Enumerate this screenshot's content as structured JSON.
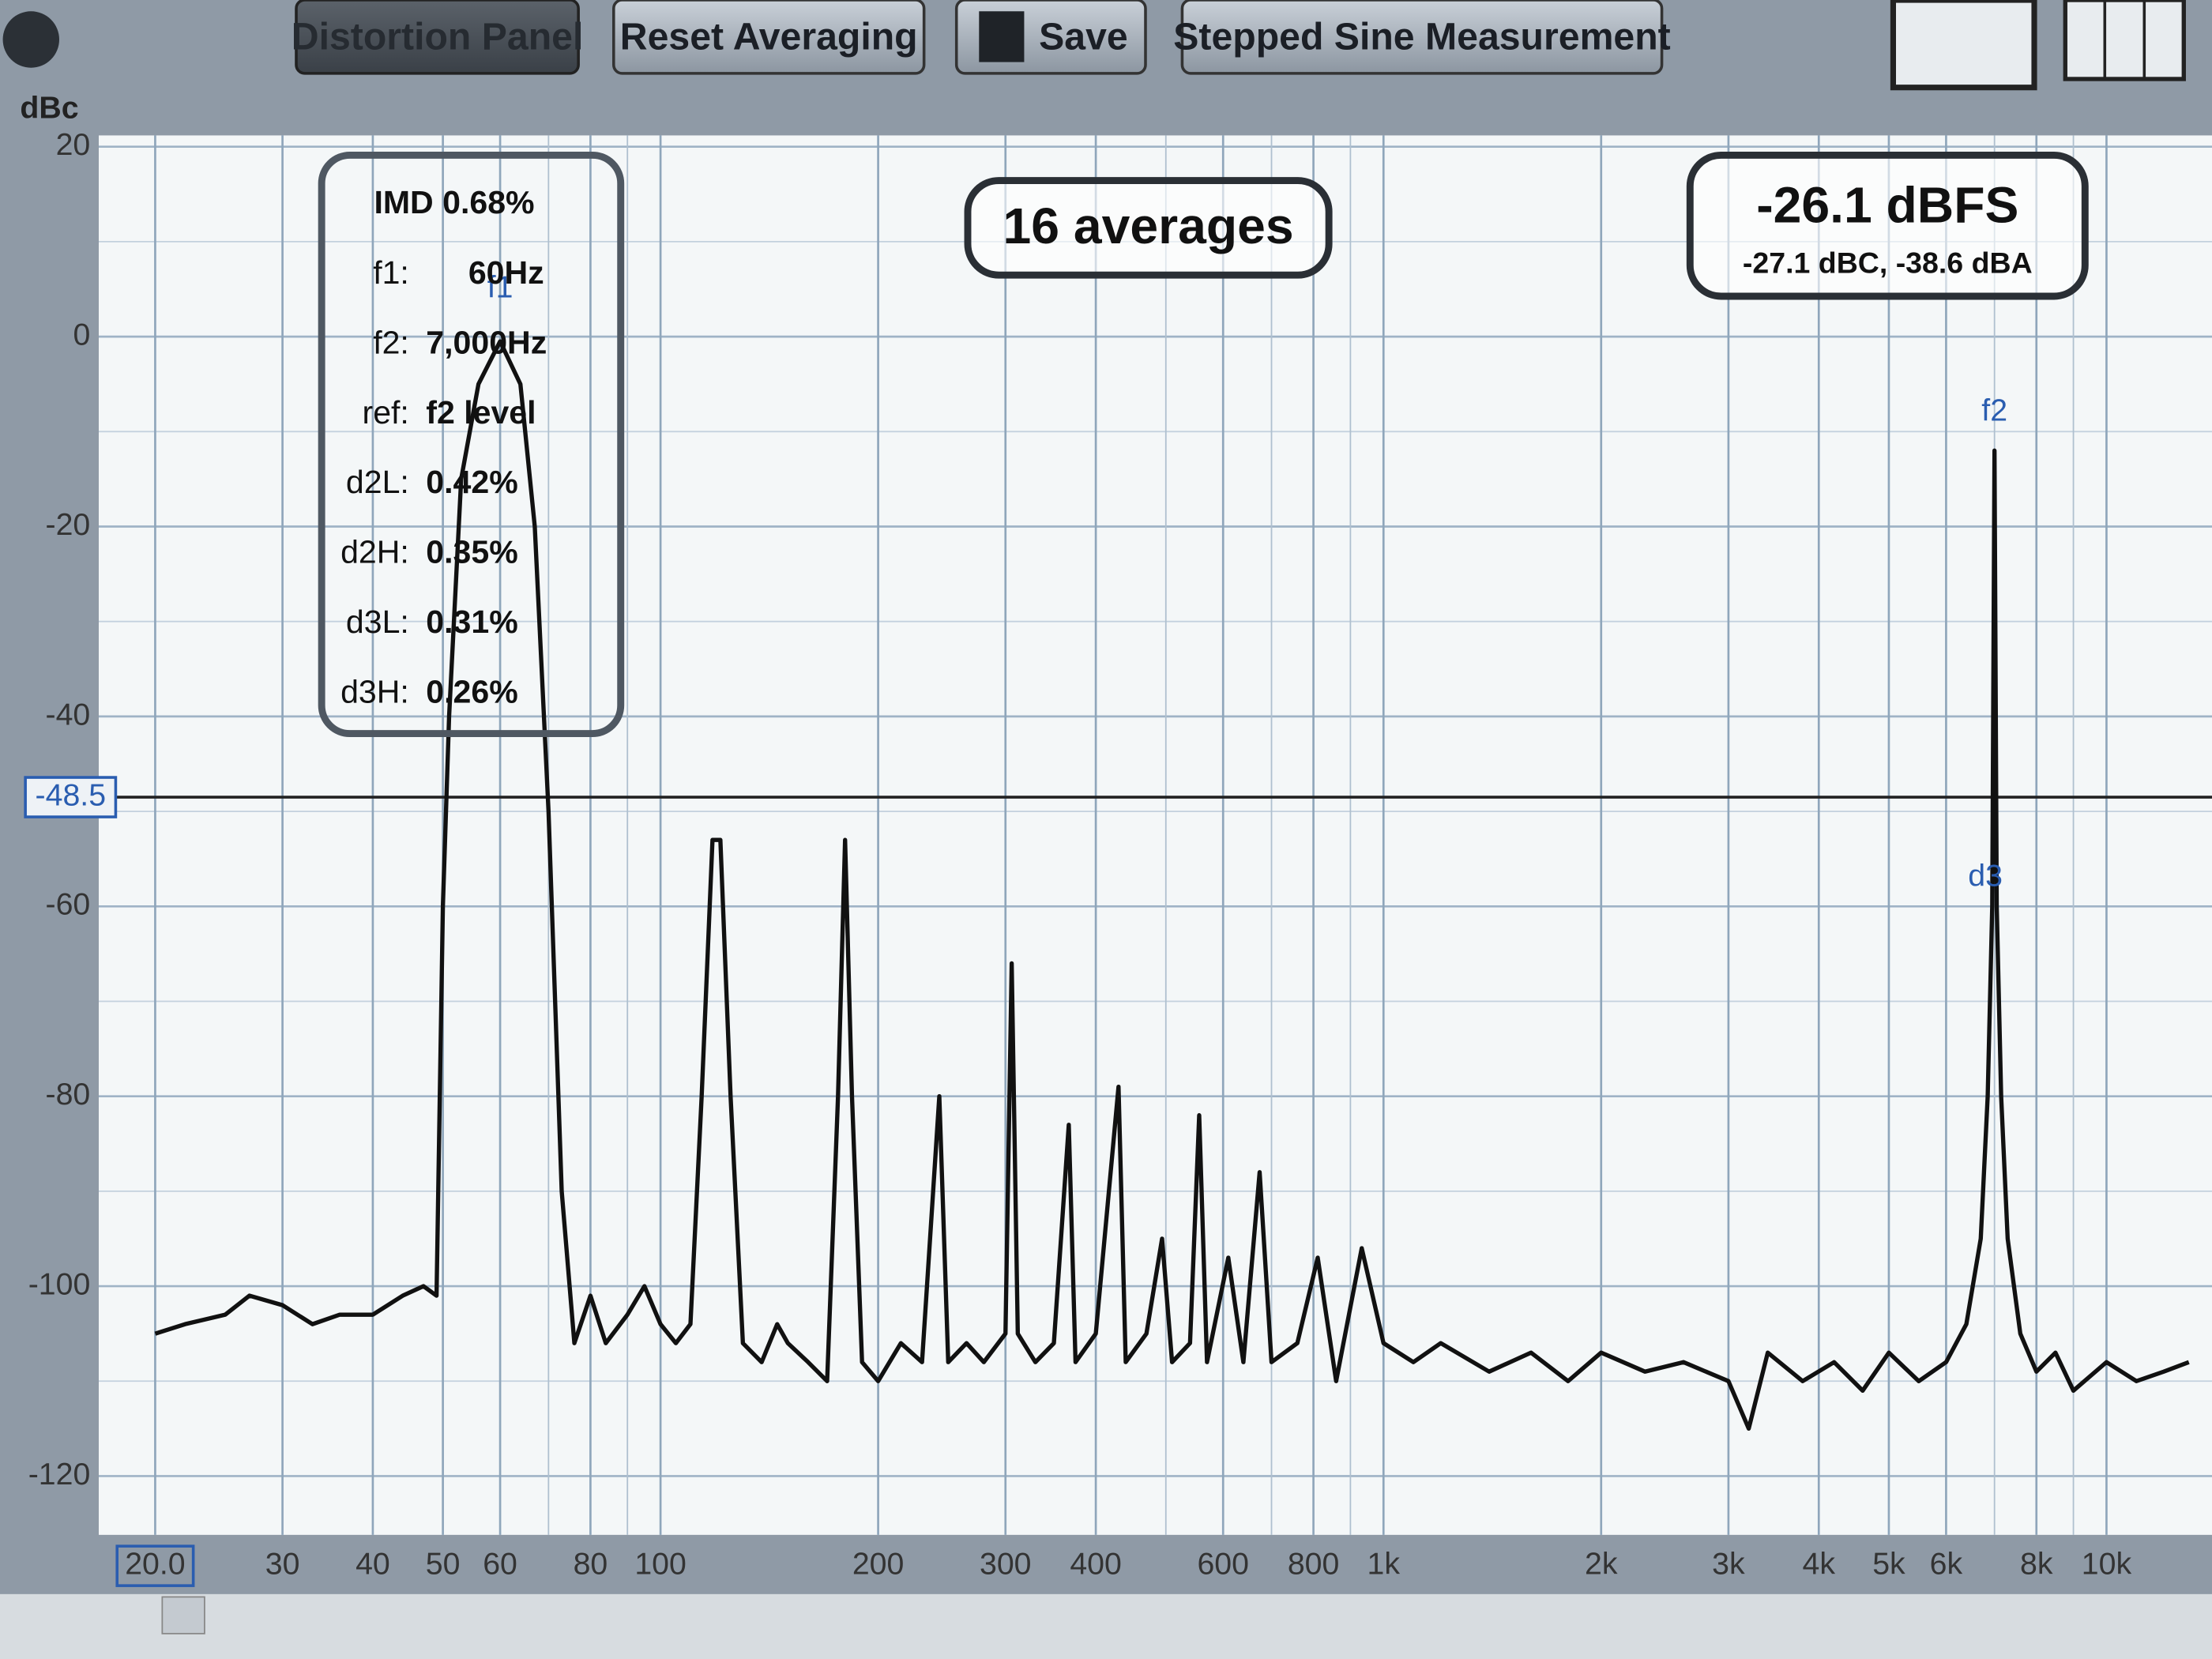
{
  "toolbar": {
    "buttons": [
      "Distortion Panel",
      "Reset Averaging",
      "Save",
      "Stepped Sine Measurement"
    ]
  },
  "info_box": {
    "title": "IMD 0.68%",
    "rows": [
      {
        "label": "f1:",
        "value": "60Hz"
      },
      {
        "label": "f2:",
        "value": "7,000Hz"
      },
      {
        "label": "ref:",
        "value": "f2 level"
      },
      {
        "label": "d2L:",
        "value": "0.42%"
      },
      {
        "label": "d2H:",
        "value": "0.35%"
      },
      {
        "label": "d3L:",
        "value": "0.31%"
      },
      {
        "label": "d3H:",
        "value": "0.26%"
      }
    ]
  },
  "averages": "16 averages",
  "level": {
    "main": "-26.1 dBFS",
    "sub": "-27.1 dBC, -38.6 dBA"
  },
  "chart_data": {
    "type": "line",
    "y_label": "dBc",
    "x_log": true,
    "grid": true,
    "color": "#111111",
    "xlim": [
      20,
      13500
    ],
    "ylim": [
      -125,
      20
    ],
    "xticks": [
      {
        "value": 20,
        "label": "20.0"
      },
      30,
      40,
      50,
      60,
      80,
      100,
      200,
      300,
      400,
      600,
      800,
      {
        "value": 1000,
        "label": "1k"
      },
      {
        "value": 2000,
        "label": "2k"
      },
      {
        "value": 3000,
        "label": "3k"
      },
      {
        "value": 4000,
        "label": "4k"
      },
      {
        "value": 5000,
        "label": "5k"
      },
      {
        "value": 6000,
        "label": "6k"
      },
      {
        "value": 8000,
        "label": "8k"
      },
      {
        "value": 10000,
        "label": "10k"
      }
    ],
    "x_minor_ticks": [
      70,
      90,
      500,
      700,
      900,
      7000,
      9000
    ],
    "yticks": [
      20,
      0,
      -20,
      -40,
      -60,
      -80,
      -100,
      -120
    ],
    "y_minor_ticks": [
      10,
      -10,
      -30,
      -50,
      -70,
      -90,
      -110
    ],
    "cursor_level": -48.5,
    "markers": [
      {
        "label": "f1",
        "x": 60,
        "y": 5
      },
      {
        "label": "f2",
        "x": 7000,
        "y": -8
      },
      {
        "label": "d3",
        "x": 6800,
        "y": -57
      }
    ],
    "x": [
      20,
      22,
      25,
      27,
      30,
      33,
      36,
      40,
      44,
      47,
      49,
      50,
      51,
      53,
      56,
      60,
      64,
      67,
      70,
      73,
      76,
      80,
      84,
      90,
      95,
      100,
      105,
      110,
      114,
      118,
      121,
      125,
      130,
      138,
      145,
      150,
      160,
      170,
      176,
      180,
      184,
      190,
      200,
      215,
      230,
      243,
      250,
      265,
      280,
      300,
      306,
      312,
      330,
      350,
      367,
      375,
      400,
      430,
      440,
      470,
      494,
      510,
      540,
      556,
      570,
      610,
      640,
      674,
      700,
      760,
      811,
      860,
      933,
      1000,
      1100,
      1200,
      1400,
      1600,
      1800,
      2000,
      2300,
      2600,
      3000,
      3200,
      3400,
      3800,
      4200,
      4600,
      5000,
      5500,
      6000,
      6400,
      6700,
      6850,
      6950,
      7000,
      7050,
      7150,
      7300,
      7600,
      8000,
      8500,
      9000,
      10000,
      11000,
      12000,
      13000
    ],
    "values": [
      -105,
      -104,
      -103,
      -101,
      -102,
      -104,
      -103,
      -103,
      -101,
      -100,
      -101,
      -60,
      -40,
      -15,
      -5,
      -0.5,
      -5,
      -20,
      -50,
      -90,
      -106,
      -101,
      -106,
      -103,
      -100,
      -104,
      -106,
      -104,
      -80,
      -53,
      -53,
      -80,
      -106,
      -108,
      -104,
      -106,
      -108,
      -110,
      -80,
      -53,
      -80,
      -108,
      -110,
      -106,
      -108,
      -80,
      -108,
      -106,
      -108,
      -105,
      -66,
      -105,
      -108,
      -106,
      -83,
      -108,
      -105,
      -79,
      -108,
      -105,
      -95,
      -108,
      -106,
      -82,
      -108,
      -97,
      -108,
      -88,
      -108,
      -106,
      -97,
      -110,
      -96,
      -106,
      -108,
      -106,
      -109,
      -107,
      -110,
      -107,
      -109,
      -108,
      -110,
      -115,
      -107,
      -110,
      -108,
      -111,
      -107,
      -110,
      -108,
      -104,
      -95,
      -80,
      -60,
      -12,
      -60,
      -80,
      -95,
      -105,
      -109,
      -107,
      -111,
      -108,
      -110,
      -109,
      -108
    ]
  }
}
